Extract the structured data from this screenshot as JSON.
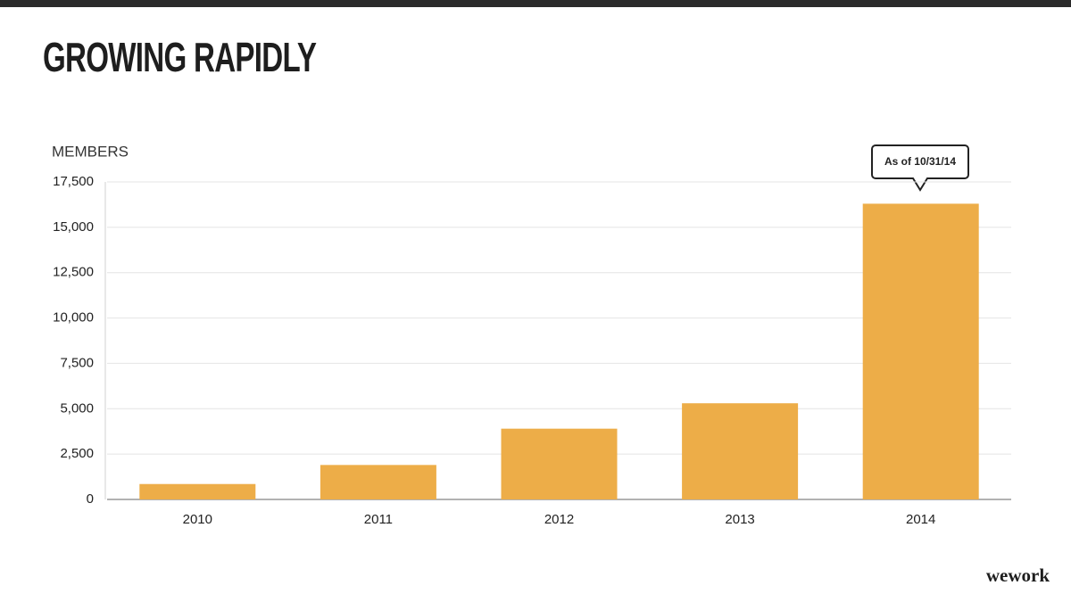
{
  "chart_data": {
    "type": "bar",
    "title": "GROWING RAPIDLY",
    "y_label": "MEMBERS",
    "categories": [
      "2010",
      "2011",
      "2012",
      "2013",
      "2014"
    ],
    "values": [
      850,
      1900,
      3900,
      5300,
      16300
    ],
    "color": "#edad48",
    "ylim": [
      0,
      17500
    ],
    "yticks": [
      0,
      {
        "value": 2500,
        "label": "2,500"
      },
      {
        "value": 5000,
        "label": "5,000"
      },
      {
        "value": 7500,
        "label": "7,500"
      },
      {
        "value": 10000,
        "label": "10,000"
      },
      {
        "value": 12500,
        "label": "12,500"
      },
      {
        "value": 15000,
        "label": "15,000"
      },
      {
        "value": 17500,
        "label": "17,500"
      }
    ],
    "grid": true,
    "annotation": "As of 10/31/14",
    "logo": "wework"
  }
}
